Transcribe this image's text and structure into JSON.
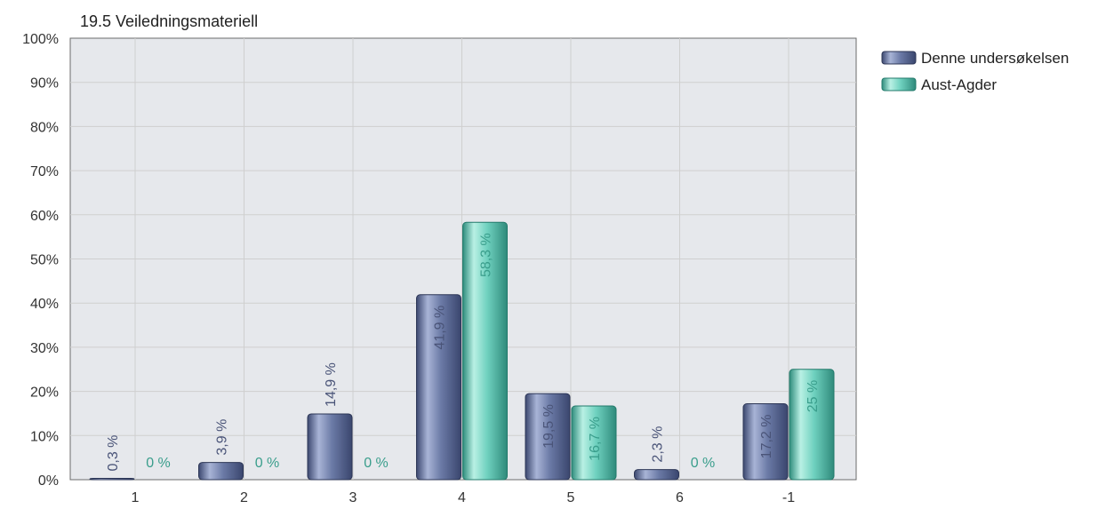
{
  "chart_data": {
    "type": "bar",
    "title": "19.5 Veiledningsmateriell",
    "xlabel": "",
    "ylabel": "",
    "categories": [
      "1",
      "2",
      "3",
      "4",
      "5",
      "6",
      "-1"
    ],
    "series": [
      {
        "name": "Denne undersøkelsen",
        "color": "#6b7aa6",
        "values": [
          0.3,
          3.9,
          14.9,
          41.9,
          19.5,
          2.3,
          17.2
        ],
        "labels": [
          "0,3 %",
          "3,9 %",
          "14,9 %",
          "41,9 %",
          "19,5 %",
          "2,3 %",
          "17,2 %"
        ]
      },
      {
        "name": "Aust-Agder",
        "color": "#6fd1bf",
        "values": [
          0,
          0,
          0,
          58.3,
          16.7,
          0,
          25
        ],
        "labels": [
          "0 %",
          "0 %",
          "0 %",
          "58,3 %",
          "16,7 %",
          "0 %",
          "25 %"
        ]
      }
    ],
    "yticks": [
      "0%",
      "10%",
      "20%",
      "30%",
      "40%",
      "50%",
      "60%",
      "70%",
      "80%",
      "90%",
      "100%"
    ],
    "ylim": [
      0,
      100
    ],
    "grid": true,
    "legend_position": "top-right"
  }
}
